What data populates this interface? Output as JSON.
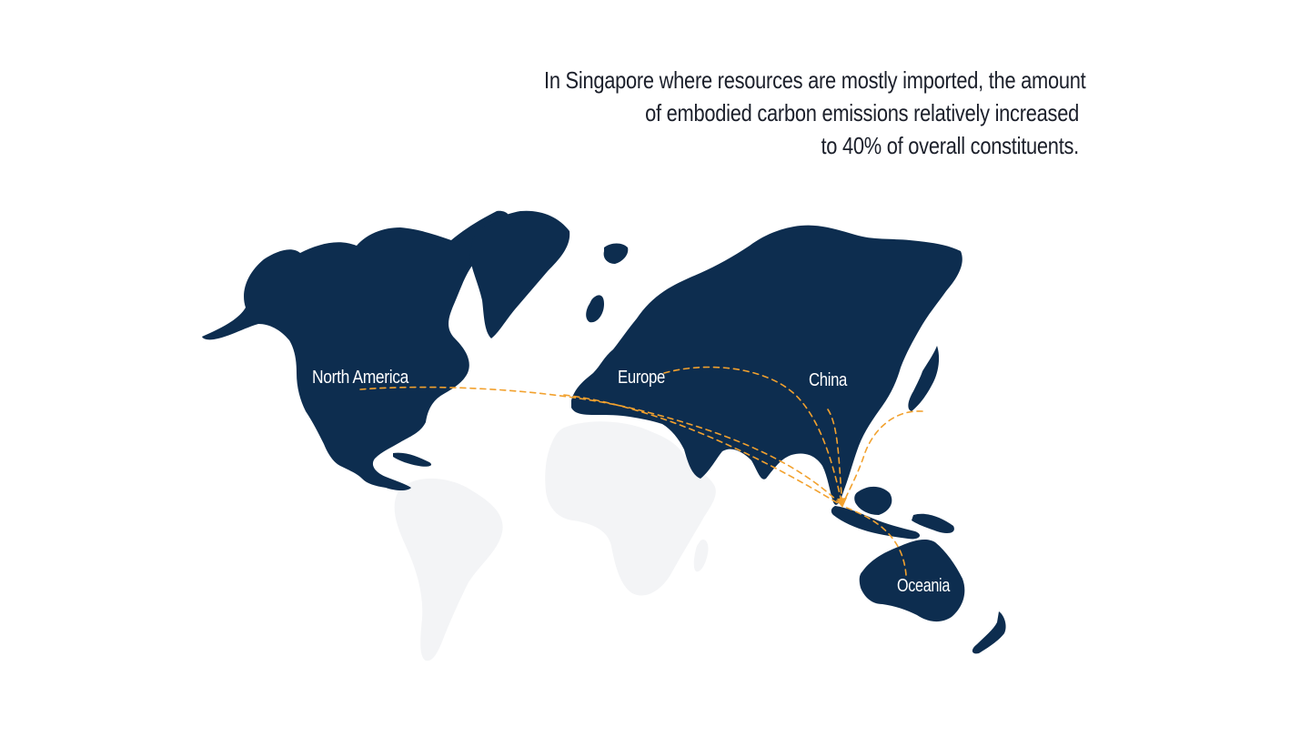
{
  "headline": {
    "line1": "In Singapore where resources are mostly imported, the amount",
    "line2": "of embodied carbon emissions relatively increased",
    "line3": "to 40% of overall constituents."
  },
  "map": {
    "regions": {
      "north_america": "North America",
      "europe": "Europe",
      "china": "China",
      "oceania": "Oceania"
    },
    "destination": "Singapore",
    "colors": {
      "highlighted_land": "#0d2d4f",
      "other_land": "#f3f4f6",
      "route": "#f2a12e",
      "label": "#ffffff"
    }
  }
}
